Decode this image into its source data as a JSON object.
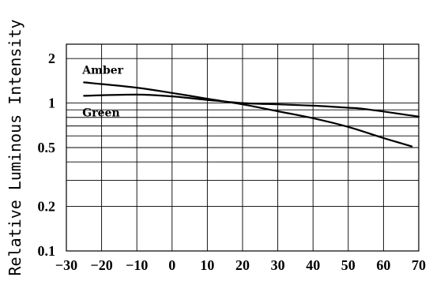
{
  "chart_data": {
    "type": "line",
    "title": "",
    "xlabel": "",
    "ylabel": "Relative Luminous Intensity",
    "xlim": [
      -30,
      70
    ],
    "ylim": [
      0.1,
      2.5
    ],
    "yscale": "log",
    "grid": true,
    "x_ticks": [
      -30,
      -20,
      -10,
      0,
      10,
      20,
      30,
      40,
      50,
      60,
      70
    ],
    "x_tick_labels": [
      "−30",
      "−20",
      "−10",
      "0",
      "10",
      "20",
      "30",
      "40",
      "50",
      "60",
      "70"
    ],
    "y_ticks": [
      0.1,
      0.2,
      0.5,
      1,
      2
    ],
    "y_tick_labels": [
      "0.1",
      "0.2",
      "0.5",
      "1",
      "2"
    ],
    "y_gridlines": [
      0.1,
      0.2,
      0.3,
      0.4,
      0.5,
      0.6,
      0.7,
      0.8,
      0.9,
      1,
      2
    ],
    "series": [
      {
        "name": "Amber",
        "x": [
          -25,
          -10,
          0,
          10,
          20,
          30,
          40,
          50,
          60,
          68
        ],
        "y": [
          1.38,
          1.27,
          1.17,
          1.07,
          0.98,
          0.88,
          0.79,
          0.69,
          0.58,
          0.51
        ]
      },
      {
        "name": "Green",
        "x": [
          -25,
          -10,
          0,
          10,
          20,
          30,
          40,
          50,
          55,
          70
        ],
        "y": [
          1.12,
          1.14,
          1.11,
          1.05,
          1.0,
          0.98,
          0.96,
          0.93,
          0.91,
          0.81
        ]
      }
    ]
  }
}
